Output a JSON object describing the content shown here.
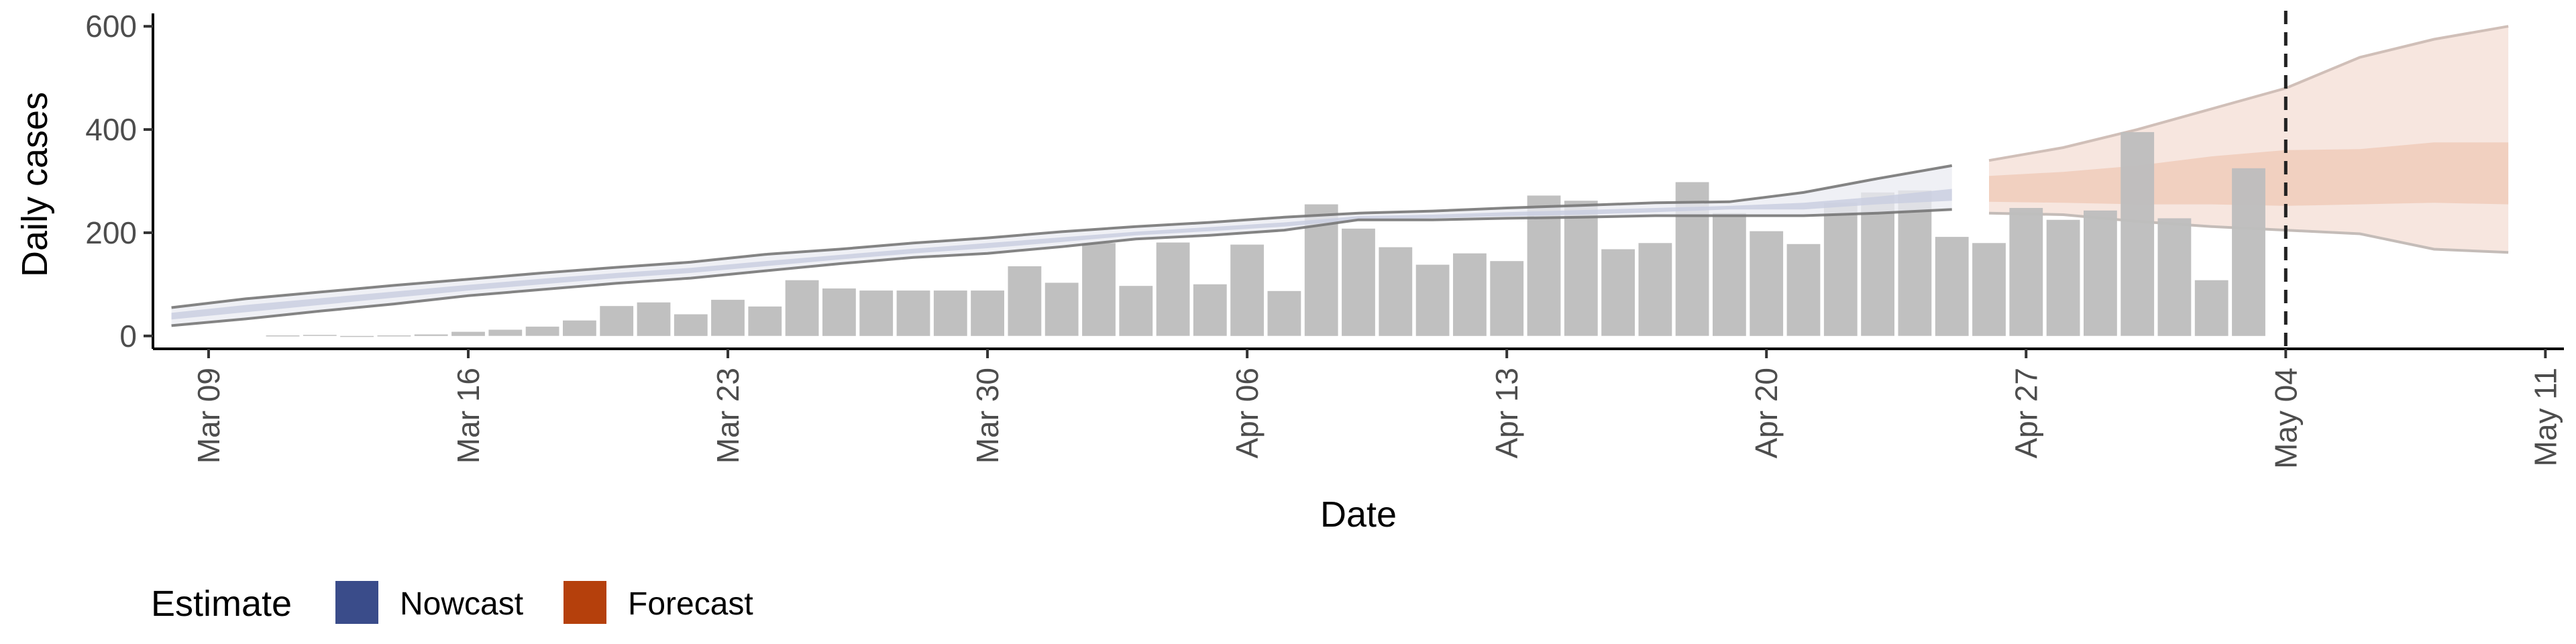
{
  "chart_data": {
    "type": "bar",
    "xlabel": "Date",
    "ylabel": "Daily cases",
    "x_start": "2020-03-08",
    "x_end": "2020-05-11",
    "ylim": [
      -25,
      625
    ],
    "yticks": [
      0,
      200,
      400,
      600
    ],
    "xticks": [
      {
        "date": "2020-03-09",
        "label": "Mar 09"
      },
      {
        "date": "2020-03-16",
        "label": "Mar 16"
      },
      {
        "date": "2020-03-23",
        "label": "Mar 23"
      },
      {
        "date": "2020-03-30",
        "label": "Mar 30"
      },
      {
        "date": "2020-04-06",
        "label": "Apr 06"
      },
      {
        "date": "2020-04-13",
        "label": "Apr 13"
      },
      {
        "date": "2020-04-20",
        "label": "Apr 20"
      },
      {
        "date": "2020-04-27",
        "label": "Apr 27"
      },
      {
        "date": "2020-05-04",
        "label": "May 04"
      },
      {
        "date": "2020-05-11",
        "label": "May 11"
      }
    ],
    "vline_date": "2020-05-04",
    "bar_color": "#bdbdbd",
    "reported_cases": {
      "dates": [
        "2020-03-11",
        "2020-03-12",
        "2020-03-13",
        "2020-03-14",
        "2020-03-15",
        "2020-03-16",
        "2020-03-17",
        "2020-03-18",
        "2020-03-19",
        "2020-03-20",
        "2020-03-21",
        "2020-03-22",
        "2020-03-23",
        "2020-03-24",
        "2020-03-25",
        "2020-03-26",
        "2020-03-27",
        "2020-03-28",
        "2020-03-29",
        "2020-03-30",
        "2020-03-31",
        "2020-04-01",
        "2020-04-02",
        "2020-04-03",
        "2020-04-04",
        "2020-04-05",
        "2020-04-06",
        "2020-04-07",
        "2020-04-08",
        "2020-04-09",
        "2020-04-10",
        "2020-04-11",
        "2020-04-12",
        "2020-04-13",
        "2020-04-14",
        "2020-04-15",
        "2020-04-16",
        "2020-04-17",
        "2020-04-18",
        "2020-04-19",
        "2020-04-20",
        "2020-04-21",
        "2020-04-22",
        "2020-04-23",
        "2020-04-24",
        "2020-04-25",
        "2020-04-26",
        "2020-04-27",
        "2020-04-28",
        "2020-04-29",
        "2020-04-30",
        "2020-05-01",
        "2020-05-02",
        "2020-05-03"
      ],
      "values": [
        1,
        2,
        0,
        1,
        3,
        8,
        12,
        18,
        30,
        58,
        65,
        42,
        70,
        57,
        108,
        92,
        88,
        88,
        88,
        88,
        135,
        103,
        180,
        97,
        181,
        100,
        177,
        87,
        255,
        208,
        172,
        138,
        160,
        145,
        272,
        262,
        168,
        180,
        298,
        238,
        203,
        178,
        258,
        278,
        282,
        192,
        180,
        248,
        225,
        243,
        395,
        228,
        108,
        325
      ]
    },
    "nowcast": {
      "name": "Nowcast",
      "color": "#3a4c8a",
      "dates": [
        "2020-03-08",
        "2020-03-10",
        "2020-03-12",
        "2020-03-14",
        "2020-03-16",
        "2020-03-18",
        "2020-03-20",
        "2020-03-22",
        "2020-03-24",
        "2020-03-26",
        "2020-03-28",
        "2020-03-30",
        "2020-04-01",
        "2020-04-03",
        "2020-04-05",
        "2020-04-07",
        "2020-04-09",
        "2020-04-11",
        "2020-04-13",
        "2020-04-15",
        "2020-04-17",
        "2020-04-19",
        "2020-04-21",
        "2020-04-23",
        "2020-04-25"
      ],
      "lower90": [
        20,
        33,
        48,
        62,
        78,
        90,
        102,
        112,
        126,
        140,
        152,
        160,
        173,
        188,
        195,
        205,
        225,
        225,
        228,
        230,
        233,
        233,
        233,
        238,
        245
      ],
      "upper90": [
        55,
        72,
        85,
        98,
        110,
        122,
        133,
        143,
        158,
        168,
        180,
        190,
        202,
        212,
        220,
        230,
        238,
        242,
        248,
        253,
        258,
        260,
        278,
        305,
        330
      ],
      "lower50": [
        32,
        46,
        60,
        74,
        88,
        100,
        112,
        122,
        135,
        148,
        160,
        170,
        182,
        195,
        203,
        212,
        225,
        228,
        232,
        235,
        240,
        245,
        245,
        255,
        262
      ],
      "upper50": [
        45,
        60,
        73,
        86,
        99,
        111,
        122,
        132,
        145,
        157,
        169,
        180,
        191,
        202,
        211,
        220,
        232,
        235,
        240,
        244,
        248,
        252,
        258,
        270,
        285
      ]
    },
    "forecast": {
      "name": "Forecast",
      "color": "#b5400c",
      "dates": [
        "2020-04-26",
        "2020-04-28",
        "2020-04-30",
        "2020-05-02",
        "2020-05-04",
        "2020-05-06",
        "2020-05-08",
        "2020-05-10"
      ],
      "lower90": [
        238,
        235,
        222,
        212,
        205,
        198,
        168,
        162
      ],
      "upper90": [
        340,
        365,
        400,
        440,
        480,
        540,
        575,
        600
      ],
      "lower50": [
        260,
        258,
        255,
        255,
        252,
        255,
        258,
        255
      ],
      "upper50": [
        310,
        318,
        330,
        348,
        360,
        362,
        375,
        375
      ]
    }
  },
  "legend": {
    "title": "Estimate",
    "items": [
      {
        "label": "Nowcast",
        "color": "#3a4c8a"
      },
      {
        "label": "Forecast",
        "color": "#b5400c"
      }
    ]
  }
}
